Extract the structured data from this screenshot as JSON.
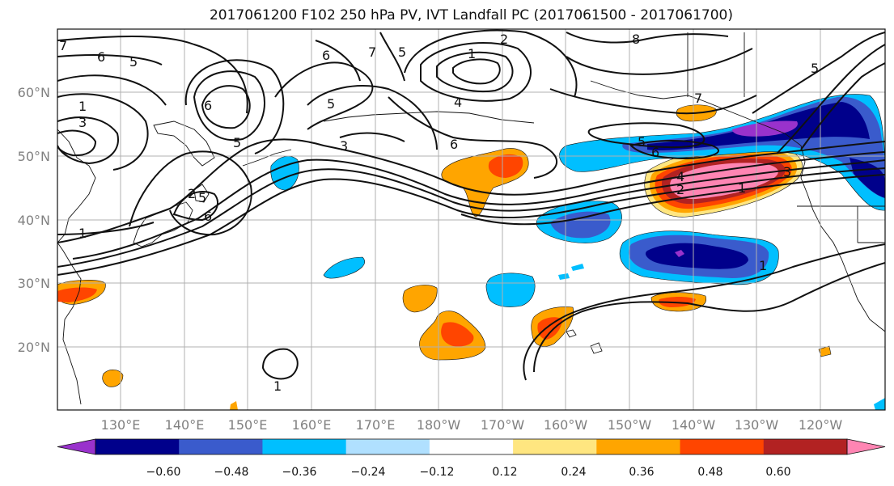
{
  "title": "2017061200 F102 250 hPa PV, IVT Landfall PC (2017061500 - 2017061700)",
  "lat_labels": [
    "60°N",
    "50°N",
    "40°N",
    "30°N",
    "20°N"
  ],
  "lon_labels": [
    "130°E",
    "140°E",
    "150°E",
    "160°E",
    "170°E",
    "180°W",
    "170°W",
    "160°W",
    "150°W",
    "140°W",
    "130°W",
    "120°W"
  ],
  "colorbar": {
    "tick_labels": [
      "−0.60",
      "−0.48",
      "−0.36",
      "−0.24",
      "−0.12",
      "0.12",
      "0.24",
      "0.36",
      "0.48",
      "0.60"
    ],
    "colors": [
      "#9932cc",
      "#00008b",
      "#3a5bcc",
      "#00bfff",
      "#b0e0ff",
      "#ffffff",
      "#ffe680",
      "#ffa500",
      "#ff4500",
      "#b22222",
      "#ff85b3"
    ]
  },
  "contour_labels": [
    "7",
    "6",
    "5",
    "6",
    "7",
    "5",
    "2",
    "1",
    "8",
    "5",
    "1",
    "3",
    "5",
    "6",
    "5",
    "3",
    "4",
    "6",
    "7",
    "5",
    "6",
    "3",
    "4",
    "2",
    "1",
    "5",
    "6",
    "2",
    "1",
    "1",
    "1"
  ]
}
